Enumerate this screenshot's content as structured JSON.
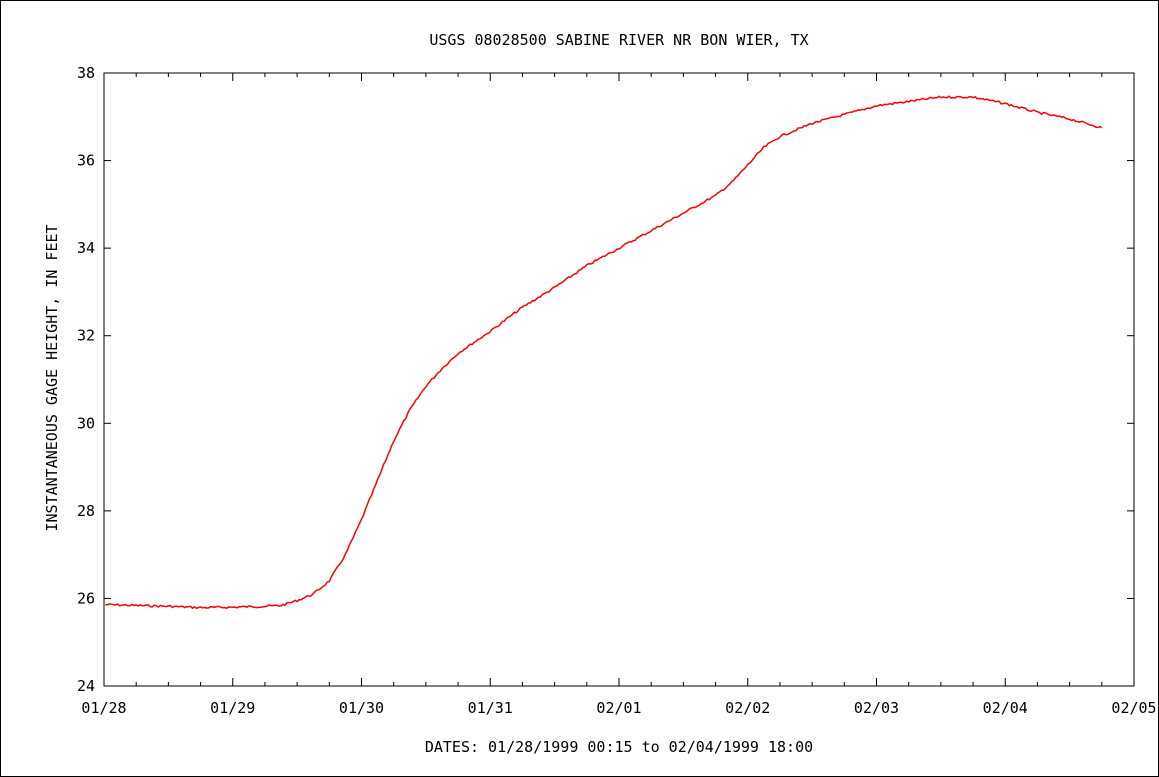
{
  "chart_data": {
    "type": "line",
    "title": "USGS 08028500 SABINE RIVER NR BON WIER, TX",
    "xlabel": "DATES: 01/28/1999 00:15 to 02/04/1999 18:00",
    "ylabel": "INSTANTANEOUS GAGE HEIGHT, IN FEET",
    "x_tick_labels": [
      "01/28",
      "01/29",
      "01/30",
      "01/31",
      "02/01",
      "02/02",
      "02/03",
      "02/04",
      "02/05"
    ],
    "x_range": [
      "01/28/1999 00:00",
      "02/05/1999 00:00"
    ],
    "y_ticks": [
      24,
      26,
      28,
      30,
      32,
      34,
      36,
      38
    ],
    "ylim": [
      24,
      38
    ],
    "grid": false,
    "series": [
      {
        "color": "#ff0000",
        "points": [
          [
            "01/28/1999 00:15",
            25.86
          ],
          [
            "01/28/1999 06:00",
            25.84
          ],
          [
            "01/28/1999 12:00",
            25.82
          ],
          [
            "01/28/1999 18:00",
            25.79
          ],
          [
            "01/29/1999 00:00",
            25.8
          ],
          [
            "01/29/1999 06:00",
            25.82
          ],
          [
            "01/29/1999 09:00",
            25.84
          ],
          [
            "01/29/1999 12:00",
            25.95
          ],
          [
            "01/29/1999 15:00",
            26.1
          ],
          [
            "01/29/1999 18:00",
            26.4
          ],
          [
            "01/29/1999 21:00",
            27.0
          ],
          [
            "01/30/1999 00:00",
            27.8
          ],
          [
            "01/30/1999 03:00",
            28.7
          ],
          [
            "01/30/1999 06:00",
            29.6
          ],
          [
            "01/30/1999 09:00",
            30.3
          ],
          [
            "01/30/1999 12:00",
            30.85
          ],
          [
            "01/30/1999 15:00",
            31.25
          ],
          [
            "01/30/1999 18:00",
            31.6
          ],
          [
            "01/31/1999 00:00",
            32.1
          ],
          [
            "01/31/1999 06:00",
            32.65
          ],
          [
            "01/31/1999 12:00",
            33.1
          ],
          [
            "01/31/1999 18:00",
            33.6
          ],
          [
            "02/01/1999 00:00",
            34.0
          ],
          [
            "02/01/1999 06:00",
            34.4
          ],
          [
            "02/01/1999 12:00",
            34.8
          ],
          [
            "02/01/1999 18:00",
            35.2
          ],
          [
            "02/01/1999 21:00",
            35.5
          ],
          [
            "02/02/1999 00:00",
            35.9
          ],
          [
            "02/02/1999 03:00",
            36.3
          ],
          [
            "02/02/1999 06:00",
            36.55
          ],
          [
            "02/02/1999 12:00",
            36.85
          ],
          [
            "02/02/1999 18:00",
            37.05
          ],
          [
            "02/03/1999 00:00",
            37.25
          ],
          [
            "02/03/1999 06:00",
            37.35
          ],
          [
            "02/03/1999 12:00",
            37.45
          ],
          [
            "02/03/1999 18:00",
            37.45
          ],
          [
            "02/04/1999 00:00",
            37.3
          ],
          [
            "02/04/1999 06:00",
            37.1
          ],
          [
            "02/04/1999 12:00",
            36.95
          ],
          [
            "02/04/1999 18:00",
            36.75
          ]
        ]
      }
    ]
  }
}
